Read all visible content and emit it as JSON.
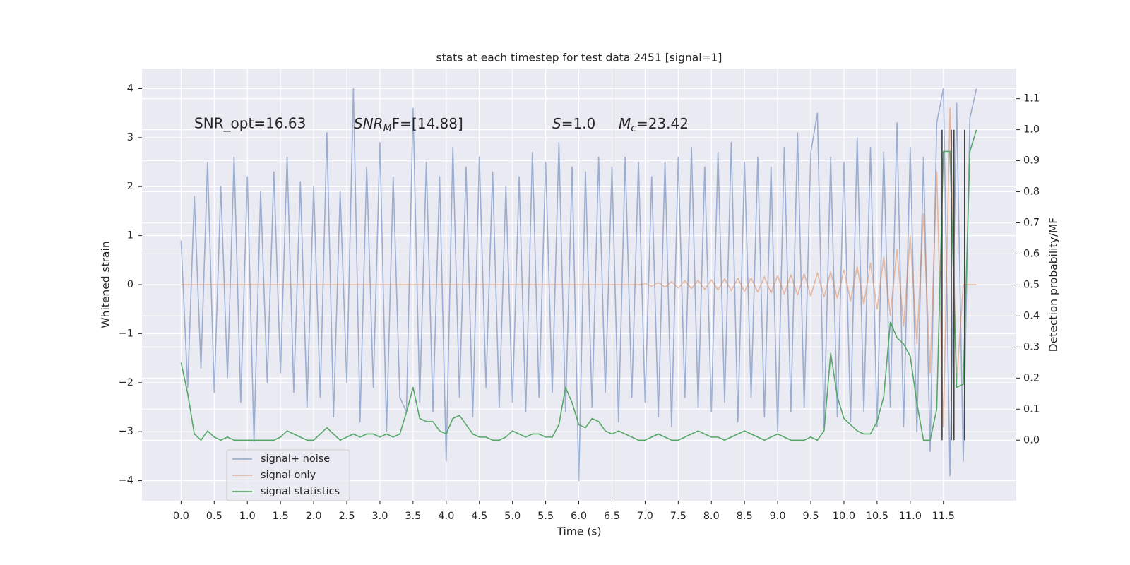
{
  "chart_data": {
    "type": "line",
    "title": "stats at each timestep for test data 2451 [signal=1]",
    "xlabel": "Time (s)",
    "ylabel": "Whitened strain",
    "y2label": "Detection probability/MF",
    "annotations": [
      "SNR_opt=16.63",
      {
        "italic": "SNR",
        "sub": "M",
        "tail": "F=[14.88]"
      },
      {
        "italic": "S",
        "tail": "=1.0"
      },
      {
        "italic": "M",
        "sub": "c",
        "tail": "=23.42"
      }
    ],
    "x": [
      0,
      0.1,
      0.2,
      0.3,
      0.4,
      0.5,
      0.6,
      0.7,
      0.8,
      0.9,
      1,
      1.1,
      1.2,
      1.3,
      1.4,
      1.5,
      1.6,
      1.7,
      1.8,
      1.9,
      2,
      2.1,
      2.2,
      2.3,
      2.4,
      2.5,
      2.6,
      2.7,
      2.8,
      2.9,
      3,
      3.1,
      3.2,
      3.3,
      3.4,
      3.5,
      3.6,
      3.7,
      3.8,
      3.9,
      4,
      4.1,
      4.2,
      4.3,
      4.4,
      4.5,
      4.6,
      4.7,
      4.8,
      4.9,
      5,
      5.1,
      5.2,
      5.3,
      5.4,
      5.5,
      5.6,
      5.7,
      5.8,
      5.9,
      6,
      6.1,
      6.2,
      6.3,
      6.4,
      6.5,
      6.6,
      6.7,
      6.8,
      6.9,
      7,
      7.1,
      7.2,
      7.3,
      7.4,
      7.5,
      7.6,
      7.7,
      7.8,
      7.9,
      8,
      8.1,
      8.2,
      8.3,
      8.4,
      8.5,
      8.6,
      8.7,
      8.8,
      8.9,
      9,
      9.1,
      9.2,
      9.3,
      9.4,
      9.5,
      9.6,
      9.7,
      9.8,
      9.9,
      10,
      10.1,
      10.2,
      10.3,
      10.4,
      10.5,
      10.6,
      10.7,
      10.8,
      10.9,
      11,
      11.1,
      11.2,
      11.3,
      11.4,
      11.5,
      11.6,
      11.7,
      11.8,
      11.9,
      12
    ],
    "series": [
      {
        "name": "signal+ noise",
        "color": "#4c72b0",
        "opacity": 0.5,
        "values": [
          0.9,
          -2.1,
          1.8,
          -1.7,
          2.5,
          -2.2,
          2.0,
          -1.9,
          2.6,
          -2.4,
          2.2,
          -3.2,
          1.9,
          -2.0,
          2.3,
          -1.8,
          2.6,
          -2.2,
          2.1,
          -2.5,
          2.0,
          -2.3,
          3.1,
          -2.7,
          1.9,
          -2.0,
          4.0,
          -2.8,
          2.4,
          -2.1,
          2.9,
          -3.0,
          2.2,
          -2.3,
          -2.6,
          3.6,
          -2.4,
          2.5,
          -2.6,
          2.2,
          -3.6,
          2.8,
          -2.3,
          2.4,
          -2.7,
          2.6,
          -2.1,
          2.3,
          -2.5,
          2.0,
          -2.4,
          2.2,
          -2.6,
          2.7,
          -2.3,
          2.5,
          -2.2,
          2.9,
          -2.6,
          2.4,
          -4.0,
          2.3,
          -2.5,
          2.6,
          -2.2,
          2.4,
          -2.8,
          2.6,
          -2.3,
          2.5,
          -2.4,
          2.2,
          -2.7,
          2.5,
          -2.9,
          2.6,
          -2.3,
          2.8,
          -2.5,
          2.4,
          -2.6,
          2.7,
          -2.4,
          2.9,
          -2.8,
          2.5,
          -2.3,
          2.6,
          -2.7,
          2.4,
          -3.0,
          2.8,
          -2.6,
          3.1,
          -2.5,
          2.7,
          3.5,
          -2.9,
          2.6,
          -2.7,
          2.5,
          -2.8,
          3.0,
          -2.6,
          2.8,
          -2.9,
          2.7,
          -2.5,
          3.3,
          -2.9,
          2.8,
          -3.0,
          2.6,
          -3.4,
          3.3,
          4.0,
          -3.9,
          3.7,
          -3.6,
          3.4,
          4.0
        ]
      },
      {
        "name": "signal only",
        "color": "#dd8452",
        "opacity": 0.5,
        "values": [
          0,
          0,
          0,
          0,
          0,
          0,
          0,
          0,
          0,
          0,
          0,
          0,
          0,
          0,
          0,
          0,
          0,
          0,
          0,
          0,
          0,
          0,
          0,
          0,
          0,
          0,
          0,
          0,
          0,
          0,
          0,
          0,
          0,
          0,
          0,
          0,
          0,
          0,
          0,
          0,
          0,
          0,
          0,
          0,
          0,
          0,
          0,
          0,
          0,
          0,
          0,
          0,
          0,
          0,
          0,
          0,
          0,
          0,
          0,
          0,
          0,
          0,
          0,
          0,
          0,
          0,
          0,
          0,
          0,
          0,
          0.02,
          -0.03,
          0.04,
          -0.05,
          0.06,
          -0.07,
          0.08,
          -0.08,
          0.09,
          -0.1,
          0.1,
          -0.11,
          0.12,
          -0.12,
          0.13,
          -0.14,
          0.14,
          -0.15,
          0.16,
          -0.17,
          0.18,
          -0.19,
          0.2,
          -0.21,
          0.22,
          -0.23,
          0.24,
          -0.25,
          0.26,
          -0.28,
          0.3,
          -0.33,
          0.36,
          -0.4,
          0.44,
          -0.5,
          0.56,
          -0.63,
          0.72,
          -0.85,
          1.0,
          -1.2,
          1.45,
          -1.8,
          2.3,
          -2.9,
          3.6,
          -2.0,
          0,
          0,
          0
        ]
      },
      {
        "name": "signal statistics",
        "color": "#55a868",
        "axis": "y2",
        "opacity": 1,
        "values": [
          0.25,
          0.15,
          0.02,
          0.0,
          0.03,
          0.01,
          0.0,
          0.01,
          0.0,
          0.0,
          0.0,
          0.0,
          0.0,
          0.0,
          0.0,
          0.01,
          0.03,
          0.02,
          0.01,
          0.0,
          0.0,
          0.02,
          0.04,
          0.02,
          0.0,
          0.01,
          0.02,
          0.01,
          0.02,
          0.02,
          0.01,
          0.02,
          0.01,
          0.02,
          0.09,
          0.17,
          0.07,
          0.06,
          0.06,
          0.03,
          0.02,
          0.07,
          0.08,
          0.05,
          0.02,
          0.01,
          0.01,
          0.0,
          0.0,
          0.01,
          0.03,
          0.02,
          0.01,
          0.02,
          0.02,
          0.01,
          0.01,
          0.05,
          0.17,
          0.12,
          0.05,
          0.04,
          0.07,
          0.06,
          0.03,
          0.02,
          0.03,
          0.02,
          0.01,
          0.0,
          0.0,
          0.01,
          0.02,
          0.01,
          0.0,
          0.0,
          0.01,
          0.02,
          0.03,
          0.02,
          0.01,
          0.01,
          0.0,
          0.01,
          0.02,
          0.03,
          0.02,
          0.01,
          0.0,
          0.01,
          0.02,
          0.01,
          0.0,
          0.0,
          0.0,
          0.01,
          0.0,
          0.03,
          0.28,
          0.14,
          0.07,
          0.05,
          0.03,
          0.02,
          0.02,
          0.06,
          0.14,
          0.38,
          0.33,
          0.31,
          0.27,
          0.12,
          0.0,
          0.0,
          0.1,
          0.93,
          0.93,
          0.17,
          0.18,
          0.93,
          1.0
        ]
      }
    ],
    "vlines": [
      11.48,
      11.62,
      11.66,
      11.82
    ],
    "vline_color": "#444444",
    "xlim": [
      -0.59,
      12.6
    ],
    "xticks": [
      {
        "value": 0,
        "label": "0.0"
      },
      {
        "value": 0.5,
        "label": "0.5"
      },
      {
        "value": 1,
        "label": "1.0"
      },
      {
        "value": 1.5,
        "label": "1.5"
      },
      {
        "value": 2,
        "label": "2.0"
      },
      {
        "value": 2.5,
        "label": "2.5"
      },
      {
        "value": 3,
        "label": "3.0"
      },
      {
        "value": 3.5,
        "label": "3.5"
      },
      {
        "value": 4,
        "label": "4.0"
      },
      {
        "value": 4.5,
        "label": "4.5"
      },
      {
        "value": 5,
        "label": "5.0"
      },
      {
        "value": 5.5,
        "label": "5.5"
      },
      {
        "value": 6,
        "label": "6.0"
      },
      {
        "value": 6.5,
        "label": "6.5"
      },
      {
        "value": 7,
        "label": "7.0"
      },
      {
        "value": 7.5,
        "label": "7.5"
      },
      {
        "value": 8,
        "label": "8.0"
      },
      {
        "value": 8.5,
        "label": "8.5"
      },
      {
        "value": 9,
        "label": "9.0"
      },
      {
        "value": 9.5,
        "label": "9.5"
      },
      {
        "value": 10,
        "label": "10.0"
      },
      {
        "value": 10.5,
        "label": "10.5"
      },
      {
        "value": 11,
        "label": "11.0"
      },
      {
        "value": 11.5,
        "label": "11.5"
      }
    ],
    "ylim": [
      -4.41,
      4.41
    ],
    "yticks": [
      {
        "value": -4,
        "label": "−4"
      },
      {
        "value": -3,
        "label": "−3"
      },
      {
        "value": -2,
        "label": "−2"
      },
      {
        "value": -1,
        "label": "−1"
      },
      0,
      1,
      2,
      3,
      4
    ],
    "y2lim": [
      -0.195,
      1.197
    ],
    "y2ticks": [
      {
        "value": 0,
        "label": "0.0"
      },
      {
        "value": 0.1,
        "label": "0.1"
      },
      {
        "value": 0.2,
        "label": "0.2"
      },
      {
        "value": 0.3,
        "label": "0.3"
      },
      {
        "value": 0.4,
        "label": "0.4"
      },
      {
        "value": 0.5,
        "label": "0.5"
      },
      {
        "value": 0.6,
        "label": "0.6"
      },
      {
        "value": 0.7,
        "label": "0.7"
      },
      {
        "value": 0.8,
        "label": "0.8"
      },
      {
        "value": 0.9,
        "label": "0.9"
      },
      {
        "value": 1,
        "label": "1.0"
      },
      {
        "value": 1.1,
        "label": "1.1"
      }
    ],
    "grid": true,
    "legend": "lower left"
  }
}
